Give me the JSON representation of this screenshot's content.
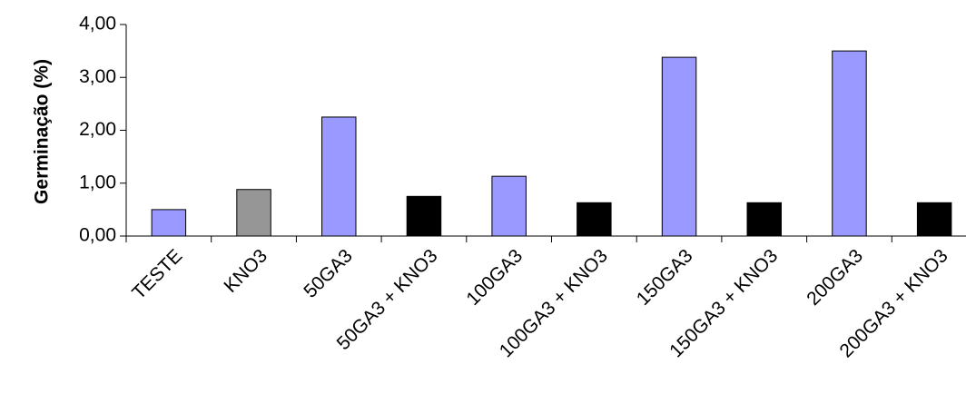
{
  "chart_data": {
    "type": "bar",
    "title": "",
    "xlabel": "",
    "ylabel": "Germinação (%)",
    "ylim": [
      0,
      4
    ],
    "yticks": [
      0,
      1,
      2,
      3,
      4
    ],
    "ytick_labels": [
      "0,00",
      "1,00",
      "2,00",
      "3,00",
      "4,00"
    ],
    "grid": false,
    "legend": "none",
    "categories": [
      "TESTE",
      "KNO3",
      "50GA3",
      "50GA3 + KNO3",
      "100GA3",
      "100GA3 + KNO3",
      "150GA3",
      "150GA3 + KNO3",
      "200GA3",
      "200GA3 + KNO3"
    ],
    "values": [
      0.5,
      0.88,
      2.25,
      0.75,
      1.13,
      0.63,
      3.38,
      0.63,
      3.5,
      0.63
    ],
    "bar_colors": [
      "#9999ff",
      "#969696",
      "#9999ff",
      "#000000",
      "#9999ff",
      "#000000",
      "#9999ff",
      "#000000",
      "#9999ff",
      "#000000"
    ]
  }
}
